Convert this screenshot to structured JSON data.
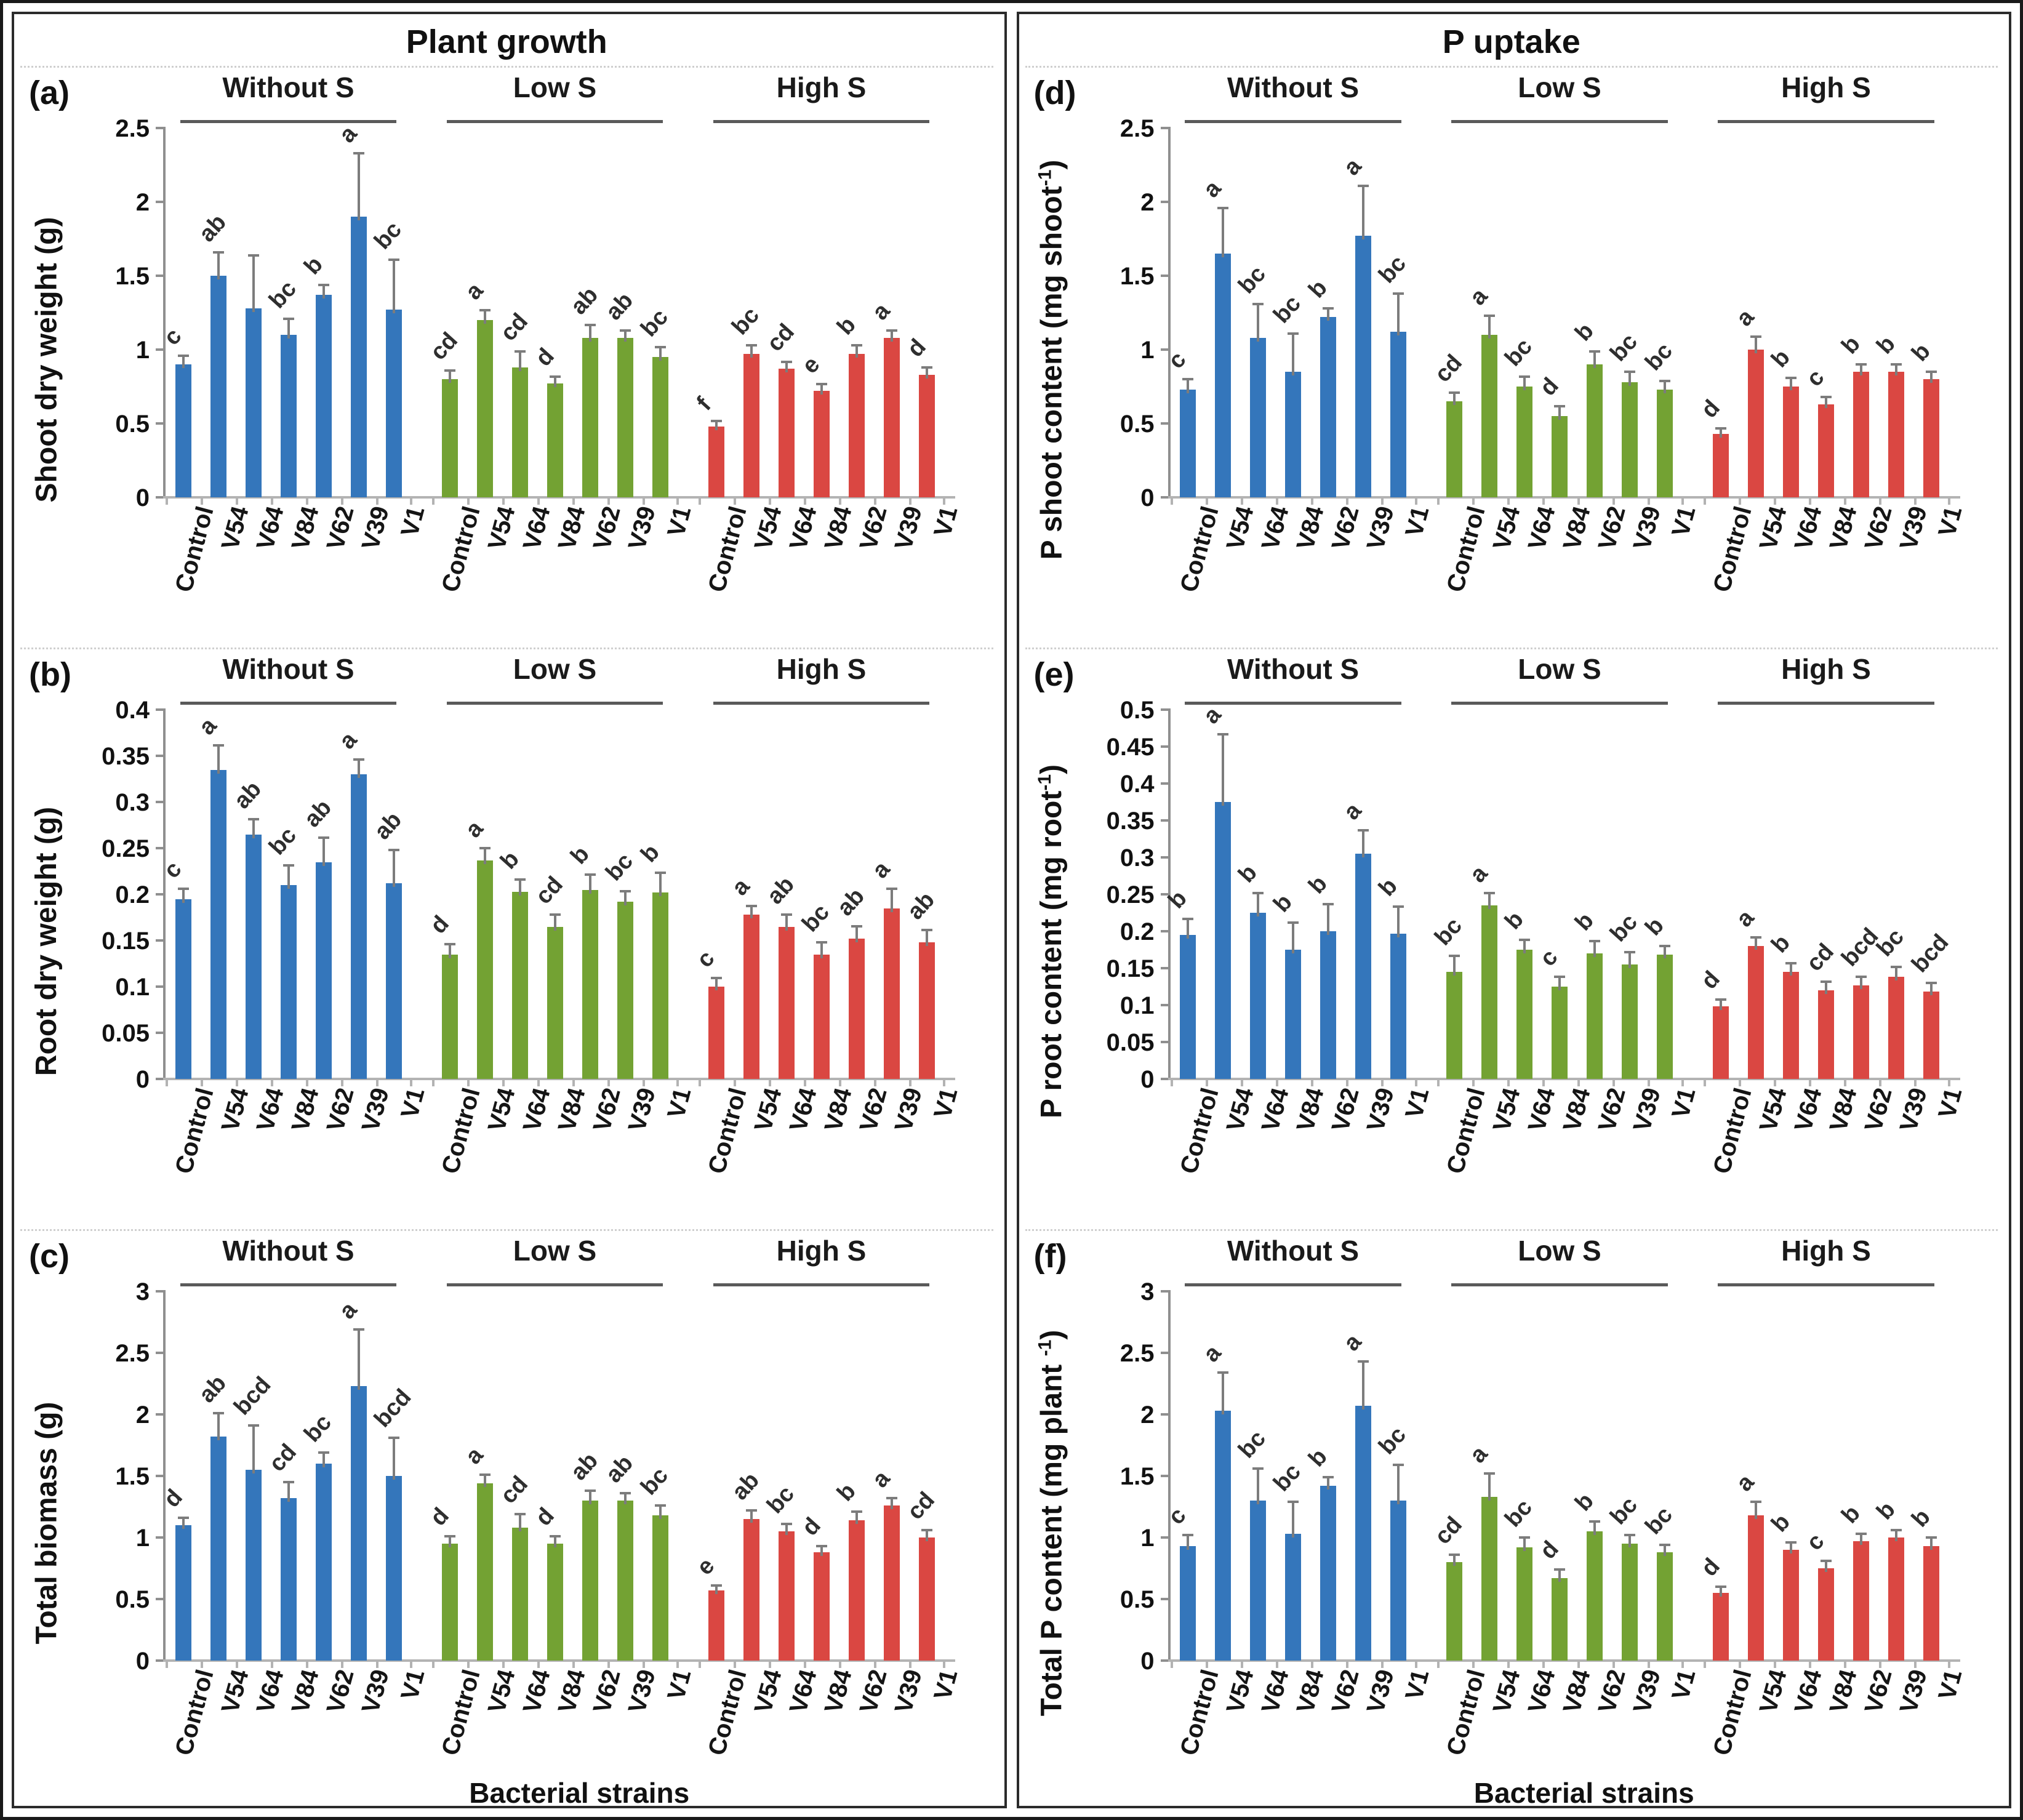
{
  "figure": {
    "left_title": "Plant growth",
    "right_title": "P uptake",
    "xaxis_title": "Bacterial strains",
    "group_labels": [
      "Without S",
      "Low S",
      "High S"
    ],
    "categories": [
      "Control",
      "V54",
      "V64",
      "V84",
      "V62",
      "V39",
      "V1"
    ],
    "colors": {
      "without_s": "#3476bb",
      "low_s": "#73a233",
      "high_s": "#da4742",
      "axis": "#8f8f8f",
      "baseline": "#b3b3b3",
      "error_bar": "#7c7c7c",
      "text": "#111111"
    }
  },
  "chart_data": [
    {
      "id": "a",
      "column": "left",
      "type": "bar",
      "panel_letter": "(a)",
      "ylabel": "Shoot dry weight (g)",
      "ylabel_sup": "",
      "ylabel_suffix": "",
      "ylim": [
        0,
        2.5
      ],
      "yticks": [
        "0",
        "0.5",
        "1",
        "1.5",
        "2",
        "2.5"
      ],
      "show_xaxis_title": false,
      "groups": [
        {
          "name": "Without S",
          "color_key": "without_s",
          "values": [
            0.9,
            1.5,
            1.28,
            1.1,
            1.37,
            1.9,
            1.27
          ],
          "errors": [
            0.05,
            0.15,
            0.35,
            0.1,
            0.06,
            0.42,
            0.33
          ],
          "letters": [
            "c",
            "ab",
            "",
            "bc",
            "b",
            "a",
            "bc"
          ]
        },
        {
          "name": "Low S",
          "color_key": "low_s",
          "values": [
            0.8,
            1.2,
            0.88,
            0.77,
            1.08,
            1.08,
            0.95
          ],
          "errors": [
            0.05,
            0.06,
            0.1,
            0.04,
            0.08,
            0.04,
            0.06
          ],
          "letters": [
            "cd",
            "a",
            "cd",
            "d",
            "ab",
            "ab",
            "bc"
          ]
        },
        {
          "name": "High S",
          "color_key": "high_s",
          "values": [
            0.48,
            0.97,
            0.87,
            0.72,
            0.97,
            1.08,
            0.83
          ],
          "errors": [
            0.03,
            0.05,
            0.04,
            0.04,
            0.05,
            0.04,
            0.04
          ],
          "letters": [
            "f",
            "bc",
            "cd",
            "e",
            "b",
            "a",
            "d"
          ]
        }
      ]
    },
    {
      "id": "b",
      "column": "left",
      "type": "bar",
      "panel_letter": "(b)",
      "ylabel": "Root dry weight (g)",
      "ylabel_sup": "",
      "ylabel_suffix": "",
      "ylim": [
        0,
        0.4
      ],
      "yticks": [
        "0",
        "0.05",
        "0.1",
        "0.15",
        "0.2",
        "0.25",
        "0.3",
        "0.35",
        "0.4"
      ],
      "show_xaxis_title": false,
      "groups": [
        {
          "name": "Without S",
          "color_key": "without_s",
          "values": [
            0.195,
            0.335,
            0.265,
            0.21,
            0.235,
            0.33,
            0.212
          ],
          "errors": [
            0.01,
            0.025,
            0.015,
            0.02,
            0.025,
            0.015,
            0.035
          ],
          "letters": [
            "c",
            "a",
            "ab",
            "bc",
            "ab",
            "a",
            "ab"
          ]
        },
        {
          "name": "Low S",
          "color_key": "low_s",
          "values": [
            0.135,
            0.237,
            0.203,
            0.165,
            0.205,
            0.192,
            0.202
          ],
          "errors": [
            0.01,
            0.012,
            0.012,
            0.012,
            0.015,
            0.01,
            0.02
          ],
          "letters": [
            "d",
            "a",
            "b",
            "cd",
            "b",
            "bc",
            "b"
          ]
        },
        {
          "name": "High S",
          "color_key": "high_s",
          "values": [
            0.1,
            0.178,
            0.165,
            0.135,
            0.152,
            0.185,
            0.148
          ],
          "errors": [
            0.008,
            0.008,
            0.012,
            0.012,
            0.012,
            0.02,
            0.012
          ],
          "letters": [
            "c",
            "a",
            "ab",
            "bc",
            "ab",
            "a",
            "ab"
          ]
        }
      ]
    },
    {
      "id": "c",
      "column": "left",
      "type": "bar",
      "panel_letter": "(c)",
      "ylabel": "Total biomass (g)",
      "ylabel_sup": "",
      "ylabel_suffix": "",
      "ylim": [
        0,
        3
      ],
      "yticks": [
        "0",
        "0.5",
        "1",
        "1.5",
        "2",
        "2.5",
        "3"
      ],
      "show_xaxis_title": true,
      "groups": [
        {
          "name": "Without S",
          "color_key": "without_s",
          "values": [
            1.1,
            1.82,
            1.55,
            1.32,
            1.6,
            2.23,
            1.5
          ],
          "errors": [
            0.05,
            0.18,
            0.35,
            0.12,
            0.08,
            0.45,
            0.3
          ],
          "letters": [
            "d",
            "ab",
            "bcd",
            "cd",
            "bc",
            "a",
            "bcd"
          ]
        },
        {
          "name": "Low S",
          "color_key": "low_s",
          "values": [
            0.95,
            1.44,
            1.08,
            0.95,
            1.3,
            1.3,
            1.18
          ],
          "errors": [
            0.05,
            0.06,
            0.1,
            0.05,
            0.07,
            0.05,
            0.07
          ],
          "letters": [
            "d",
            "a",
            "cd",
            "d",
            "ab",
            "ab",
            "bc"
          ]
        },
        {
          "name": "High S",
          "color_key": "high_s",
          "values": [
            0.57,
            1.15,
            1.05,
            0.88,
            1.14,
            1.26,
            1.0
          ],
          "errors": [
            0.03,
            0.06,
            0.05,
            0.04,
            0.06,
            0.05,
            0.05
          ],
          "letters": [
            "e",
            "ab",
            "bc",
            "d",
            "b",
            "a",
            "cd"
          ]
        }
      ]
    },
    {
      "id": "d",
      "column": "right",
      "type": "bar",
      "panel_letter": "(d)",
      "ylabel": "P shoot content (mg shoot",
      "ylabel_sup": "-1",
      "ylabel_suffix": ")",
      "ylim": [
        0,
        2.5
      ],
      "yticks": [
        "0",
        "0.5",
        "1",
        "1.5",
        "2",
        "2.5"
      ],
      "show_xaxis_title": false,
      "groups": [
        {
          "name": "Without S",
          "color_key": "without_s",
          "values": [
            0.73,
            1.65,
            1.08,
            0.85,
            1.22,
            1.77,
            1.12
          ],
          "errors": [
            0.06,
            0.3,
            0.22,
            0.25,
            0.05,
            0.33,
            0.25
          ],
          "letters": [
            "c",
            "a",
            "bc",
            "bc",
            "b",
            "a",
            "bc"
          ]
        },
        {
          "name": "Low S",
          "color_key": "low_s",
          "values": [
            0.65,
            1.1,
            0.75,
            0.55,
            0.9,
            0.78,
            0.73
          ],
          "errors": [
            0.05,
            0.12,
            0.06,
            0.06,
            0.08,
            0.06,
            0.05
          ],
          "letters": [
            "cd",
            "a",
            "bc",
            "d",
            "b",
            "bc",
            "bc"
          ]
        },
        {
          "name": "High S",
          "color_key": "high_s",
          "values": [
            0.43,
            1.0,
            0.75,
            0.63,
            0.85,
            0.85,
            0.8
          ],
          "errors": [
            0.03,
            0.08,
            0.05,
            0.04,
            0.04,
            0.04,
            0.04
          ],
          "letters": [
            "d",
            "a",
            "b",
            "c",
            "b",
            "b",
            "b"
          ]
        }
      ]
    },
    {
      "id": "e",
      "column": "right",
      "type": "bar",
      "panel_letter": "(e)",
      "ylabel": "P root content  (mg root",
      "ylabel_sup": "-1",
      "ylabel_suffix": ")",
      "ylim": [
        0,
        0.5
      ],
      "yticks": [
        "0",
        "0.05",
        "0.1",
        "0.15",
        "0.2",
        "0.25",
        "0.3",
        "0.35",
        "0.4",
        "0.45",
        "0.5"
      ],
      "show_xaxis_title": false,
      "groups": [
        {
          "name": "Without S",
          "color_key": "without_s",
          "values": [
            0.195,
            0.375,
            0.225,
            0.175,
            0.2,
            0.305,
            0.197
          ],
          "errors": [
            0.02,
            0.09,
            0.025,
            0.035,
            0.035,
            0.03,
            0.035
          ],
          "letters": [
            "b",
            "a",
            "b",
            "b",
            "b",
            "a",
            "b"
          ]
        },
        {
          "name": "Low S",
          "color_key": "low_s",
          "values": [
            0.145,
            0.235,
            0.175,
            0.125,
            0.17,
            0.155,
            0.168
          ],
          "errors": [
            0.02,
            0.015,
            0.012,
            0.012,
            0.015,
            0.015,
            0.01
          ],
          "letters": [
            "bc",
            "a",
            "b",
            "c",
            "b",
            "bc",
            "b"
          ]
        },
        {
          "name": "High S",
          "color_key": "high_s",
          "values": [
            0.098,
            0.18,
            0.145,
            0.12,
            0.127,
            0.138,
            0.118
          ],
          "errors": [
            0.008,
            0.01,
            0.01,
            0.01,
            0.01,
            0.012,
            0.01
          ],
          "letters": [
            "d",
            "a",
            "b",
            "cd",
            "bcd",
            "bc",
            "bcd"
          ]
        }
      ]
    },
    {
      "id": "f",
      "column": "right",
      "type": "bar",
      "panel_letter": "(f)",
      "ylabel": "Total P content (mg plant ",
      "ylabel_sup": "-1",
      "ylabel_suffix": ")",
      "ylim": [
        0,
        3
      ],
      "yticks": [
        "0",
        "0.5",
        "1",
        "1.5",
        "2",
        "2.5",
        "3"
      ],
      "show_xaxis_title": true,
      "groups": [
        {
          "name": "Without S",
          "color_key": "without_s",
          "values": [
            0.93,
            2.03,
            1.3,
            1.03,
            1.42,
            2.07,
            1.3
          ],
          "errors": [
            0.08,
            0.3,
            0.25,
            0.25,
            0.06,
            0.35,
            0.28
          ],
          "letters": [
            "c",
            "a",
            "bc",
            "bc",
            "b",
            "a",
            "bc"
          ]
        },
        {
          "name": "Low S",
          "color_key": "low_s",
          "values": [
            0.8,
            1.33,
            0.92,
            0.67,
            1.05,
            0.95,
            0.88
          ],
          "errors": [
            0.05,
            0.18,
            0.07,
            0.06,
            0.07,
            0.06,
            0.05
          ],
          "letters": [
            "cd",
            "a",
            "bc",
            "d",
            "b",
            "bc",
            "bc"
          ]
        },
        {
          "name": "High S",
          "color_key": "high_s",
          "values": [
            0.55,
            1.18,
            0.9,
            0.75,
            0.97,
            1.0,
            0.93
          ],
          "errors": [
            0.04,
            0.1,
            0.05,
            0.05,
            0.05,
            0.05,
            0.06
          ],
          "letters": [
            "d",
            "a",
            "b",
            "c",
            "b",
            "b",
            "b"
          ]
        }
      ]
    }
  ]
}
